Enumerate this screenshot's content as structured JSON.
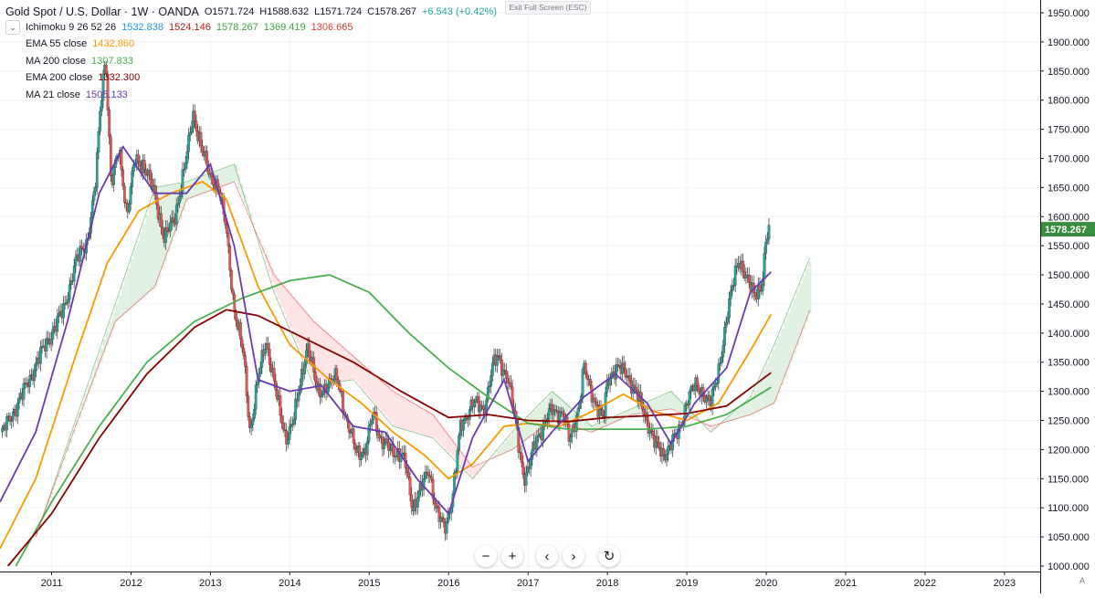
{
  "header": {
    "symbol_title": "Gold Spot / U.S. Dollar · 1W · OANDA",
    "open": "O1571.724",
    "high": "H1588.632",
    "low": "L1571.724",
    "close": "C1578.267",
    "change": "+6.543 (+0.42%)"
  },
  "exit_fullscreen_label": "Exit Full Screen (ESC)",
  "studies": [
    {
      "name": "Ichimoku 9 26 52 26",
      "values": [
        {
          "text": "1532.838",
          "color": "#2196f3"
        },
        {
          "text": "1524.146",
          "color": "#b71c1c"
        },
        {
          "text": "1578.267",
          "color": "#43a047"
        },
        {
          "text": "1369.419",
          "color": "#43a047"
        },
        {
          "text": "1306.665",
          "color": "#e53935"
        }
      ]
    },
    {
      "name": "EMA 55 close",
      "values": [
        {
          "text": "1432.860",
          "color": "#ff9800"
        }
      ]
    },
    {
      "name": "MA 200 close",
      "values": [
        {
          "text": "1307.833",
          "color": "#4caf50"
        }
      ]
    },
    {
      "name": "EMA 200 close",
      "values": [
        {
          "text": "1332.300",
          "color": "#8b0000"
        }
      ]
    },
    {
      "name": "MA 21 close",
      "values": [
        {
          "text": "1505.133",
          "color": "#673ab7"
        }
      ]
    }
  ],
  "colors": {
    "up_candle": "#26a69a",
    "down_candle": "#ef5350",
    "ema55": "#ff9800",
    "ma200": "#4caf50",
    "ema200": "#8b0000",
    "ma21": "#673ab7",
    "cloud_bull": "#c8e6c9",
    "cloud_bear": "#ffcdd2",
    "price_tag": "#388e3c"
  },
  "last_price_label": "1578.267",
  "bottom_toolbar": {
    "zoom_out": "−",
    "zoom_in": "+",
    "scroll_left": "‹",
    "scroll_right": "›",
    "reset": "↻"
  },
  "auto_scale_label": "A",
  "chart_data": {
    "type": "candlestick",
    "title": "Gold Spot / U.S. Dollar · 1W · OANDA",
    "y_axis_position": "right",
    "ylim": [
      1000,
      1950
    ],
    "y_ticks": [
      1000,
      1050,
      1100,
      1150,
      1200,
      1250,
      1300,
      1350,
      1400,
      1450,
      1500,
      1550,
      1600,
      1650,
      1700,
      1750,
      1800,
      1850,
      1900,
      1950
    ],
    "y_tick_labels": [
      "1000.000",
      "1050.000",
      "1100.000",
      "1150.000",
      "1200.000",
      "1250.000",
      "1300.000",
      "1350.000",
      "1400.000",
      "1450.000",
      "1500.000",
      "1550.000",
      "1600.000",
      "1650.000",
      "1700.000",
      "1750.000",
      "1800.000",
      "1850.000",
      "1900.000",
      "1950.000"
    ],
    "x_ticks": [
      2011,
      2012,
      2013,
      2014,
      2015,
      2016,
      2017,
      2018,
      2019,
      2020,
      2021,
      2022,
      2023
    ],
    "xlim": [
      2010.35,
      2023.45
    ],
    "last_price": 1578.267,
    "price_path": [
      [
        2010.38,
        1230
      ],
      [
        2010.5,
        1260
      ],
      [
        2010.65,
        1300
      ],
      [
        2010.85,
        1360
      ],
      [
        2011.0,
        1400
      ],
      [
        2011.15,
        1440
      ],
      [
        2011.3,
        1520
      ],
      [
        2011.45,
        1560
      ],
      [
        2011.55,
        1650
      ],
      [
        2011.62,
        1800
      ],
      [
        2011.68,
        1880
      ],
      [
        2011.75,
        1650
      ],
      [
        2011.85,
        1720
      ],
      [
        2011.95,
        1600
      ],
      [
        2012.05,
        1700
      ],
      [
        2012.15,
        1690
      ],
      [
        2012.3,
        1640
      ],
      [
        2012.42,
        1560
      ],
      [
        2012.55,
        1600
      ],
      [
        2012.7,
        1700
      ],
      [
        2012.78,
        1780
      ],
      [
        2012.9,
        1710
      ],
      [
        2013.0,
        1670
      ],
      [
        2013.1,
        1650
      ],
      [
        2013.2,
        1580
      ],
      [
        2013.3,
        1440
      ],
      [
        2013.42,
        1360
      ],
      [
        2013.5,
        1230
      ],
      [
        2013.6,
        1320
      ],
      [
        2013.7,
        1390
      ],
      [
        2013.85,
        1280
      ],
      [
        2013.95,
        1220
      ],
      [
        2014.05,
        1250
      ],
      [
        2014.15,
        1330
      ],
      [
        2014.22,
        1380
      ],
      [
        2014.35,
        1300
      ],
      [
        2014.5,
        1310
      ],
      [
        2014.6,
        1330
      ],
      [
        2014.72,
        1240
      ],
      [
        2014.85,
        1200
      ],
      [
        2014.95,
        1190
      ],
      [
        2015.05,
        1270
      ],
      [
        2015.15,
        1210
      ],
      [
        2015.3,
        1200
      ],
      [
        2015.45,
        1180
      ],
      [
        2015.55,
        1100
      ],
      [
        2015.65,
        1130
      ],
      [
        2015.75,
        1170
      ],
      [
        2015.85,
        1090
      ],
      [
        2015.95,
        1065
      ],
      [
        2016.05,
        1120
      ],
      [
        2016.15,
        1240
      ],
      [
        2016.3,
        1280
      ],
      [
        2016.45,
        1270
      ],
      [
        2016.55,
        1340
      ],
      [
        2016.62,
        1360
      ],
      [
        2016.75,
        1320
      ],
      [
        2016.85,
        1240
      ],
      [
        2016.95,
        1150
      ],
      [
        2017.0,
        1160
      ],
      [
        2017.1,
        1220
      ],
      [
        2017.2,
        1240
      ],
      [
        2017.3,
        1270
      ],
      [
        2017.45,
        1260
      ],
      [
        2017.52,
        1215
      ],
      [
        2017.65,
        1280
      ],
      [
        2017.7,
        1340
      ],
      [
        2017.85,
        1280
      ],
      [
        2017.95,
        1250
      ],
      [
        2018.0,
        1320
      ],
      [
        2018.1,
        1340
      ],
      [
        2018.25,
        1330
      ],
      [
        2018.35,
        1300
      ],
      [
        2018.5,
        1250
      ],
      [
        2018.6,
        1210
      ],
      [
        2018.7,
        1190
      ],
      [
        2018.8,
        1210
      ],
      [
        2018.9,
        1230
      ],
      [
        2019.0,
        1285
      ],
      [
        2019.1,
        1310
      ],
      [
        2019.2,
        1300
      ],
      [
        2019.3,
        1275
      ],
      [
        2019.4,
        1340
      ],
      [
        2019.5,
        1420
      ],
      [
        2019.6,
        1500
      ],
      [
        2019.65,
        1530
      ],
      [
        2019.75,
        1490
      ],
      [
        2019.85,
        1470
      ],
      [
        2019.95,
        1480
      ],
      [
        2020.0,
        1560
      ],
      [
        2020.04,
        1578
      ]
    ],
    "series": [
      {
        "name": "EMA 55 close",
        "color": "#ff9800",
        "points": [
          [
            2010.35,
            1030
          ],
          [
            2010.8,
            1150
          ],
          [
            2011.3,
            1360
          ],
          [
            2011.7,
            1520
          ],
          [
            2012.1,
            1610
          ],
          [
            2012.5,
            1640
          ],
          [
            2012.9,
            1660
          ],
          [
            2013.2,
            1630
          ],
          [
            2013.6,
            1480
          ],
          [
            2014.0,
            1380
          ],
          [
            2014.5,
            1320
          ],
          [
            2014.9,
            1280
          ],
          [
            2015.3,
            1230
          ],
          [
            2015.7,
            1190
          ],
          [
            2016.0,
            1150
          ],
          [
            2016.3,
            1175
          ],
          [
            2016.7,
            1240
          ],
          [
            2017.0,
            1245
          ],
          [
            2017.4,
            1240
          ],
          [
            2017.8,
            1265
          ],
          [
            2018.2,
            1295
          ],
          [
            2018.6,
            1265
          ],
          [
            2019.0,
            1250
          ],
          [
            2019.4,
            1280
          ],
          [
            2019.8,
            1370
          ],
          [
            2020.06,
            1432
          ]
        ]
      },
      {
        "name": "MA 200 close",
        "color": "#4caf50",
        "points": [
          [
            2010.55,
            1000
          ],
          [
            2011.0,
            1110
          ],
          [
            2011.6,
            1240
          ],
          [
            2012.2,
            1350
          ],
          [
            2012.8,
            1420
          ],
          [
            2013.4,
            1460
          ],
          [
            2014.0,
            1490
          ],
          [
            2014.5,
            1500
          ],
          [
            2015.0,
            1470
          ],
          [
            2015.5,
            1400
          ],
          [
            2016.0,
            1340
          ],
          [
            2016.5,
            1290
          ],
          [
            2017.0,
            1245
          ],
          [
            2017.5,
            1235
          ],
          [
            2018.0,
            1235
          ],
          [
            2018.5,
            1235
          ],
          [
            2019.0,
            1240
          ],
          [
            2019.5,
            1260
          ],
          [
            2020.06,
            1307
          ]
        ]
      },
      {
        "name": "EMA 200 close",
        "color": "#8b0000",
        "points": [
          [
            2010.45,
            1000
          ],
          [
            2011.0,
            1090
          ],
          [
            2011.6,
            1220
          ],
          [
            2012.2,
            1330
          ],
          [
            2012.8,
            1410
          ],
          [
            2013.2,
            1440
          ],
          [
            2013.6,
            1430
          ],
          [
            2014.2,
            1390
          ],
          [
            2014.8,
            1350
          ],
          [
            2015.4,
            1300
          ],
          [
            2016.0,
            1255
          ],
          [
            2016.5,
            1260
          ],
          [
            2017.0,
            1250
          ],
          [
            2017.5,
            1248
          ],
          [
            2018.0,
            1255
          ],
          [
            2018.5,
            1258
          ],
          [
            2019.0,
            1262
          ],
          [
            2019.5,
            1275
          ],
          [
            2020.06,
            1332
          ]
        ]
      },
      {
        "name": "MA 21 close",
        "color": "#673ab7",
        "points": [
          [
            2010.35,
            1110
          ],
          [
            2010.8,
            1230
          ],
          [
            2011.2,
            1420
          ],
          [
            2011.6,
            1640
          ],
          [
            2011.9,
            1720
          ],
          [
            2012.3,
            1640
          ],
          [
            2012.7,
            1640
          ],
          [
            2013.0,
            1690
          ],
          [
            2013.3,
            1550
          ],
          [
            2013.6,
            1320
          ],
          [
            2014.0,
            1300
          ],
          [
            2014.4,
            1310
          ],
          [
            2014.8,
            1240
          ],
          [
            2015.2,
            1230
          ],
          [
            2015.6,
            1150
          ],
          [
            2016.0,
            1090
          ],
          [
            2016.3,
            1220
          ],
          [
            2016.7,
            1320
          ],
          [
            2017.0,
            1180
          ],
          [
            2017.3,
            1230
          ],
          [
            2017.7,
            1290
          ],
          [
            2018.1,
            1330
          ],
          [
            2018.5,
            1280
          ],
          [
            2018.8,
            1210
          ],
          [
            2019.1,
            1280
          ],
          [
            2019.5,
            1340
          ],
          [
            2019.8,
            1470
          ],
          [
            2020.06,
            1505
          ]
        ]
      },
      {
        "name": "Ichimoku Senkou A",
        "color": "#43a047",
        "points": [
          [
            2010.8,
            1050
          ],
          [
            2011.3,
            1250
          ],
          [
            2011.8,
            1450
          ],
          [
            2012.3,
            1650
          ],
          [
            2012.7,
            1660
          ],
          [
            2013.3,
            1690
          ],
          [
            2013.8,
            1470
          ],
          [
            2014.3,
            1310
          ],
          [
            2014.8,
            1320
          ],
          [
            2015.3,
            1240
          ],
          [
            2015.8,
            1220
          ],
          [
            2016.3,
            1150
          ],
          [
            2016.8,
            1230
          ],
          [
            2017.3,
            1300
          ],
          [
            2017.8,
            1240
          ],
          [
            2018.3,
            1270
          ],
          [
            2018.8,
            1300
          ],
          [
            2019.3,
            1230
          ],
          [
            2019.8,
            1290
          ],
          [
            2020.1,
            1380
          ],
          [
            2020.55,
            1530
          ]
        ]
      },
      {
        "name": "Ichimoku Senkou B",
        "color": "#e53935",
        "points": [
          [
            2010.8,
            1050
          ],
          [
            2011.3,
            1240
          ],
          [
            2011.8,
            1420
          ],
          [
            2012.3,
            1480
          ],
          [
            2012.7,
            1630
          ],
          [
            2013.3,
            1660
          ],
          [
            2013.8,
            1500
          ],
          [
            2014.3,
            1420
          ],
          [
            2014.8,
            1360
          ],
          [
            2015.3,
            1300
          ],
          [
            2015.8,
            1260
          ],
          [
            2016.3,
            1170
          ],
          [
            2016.8,
            1200
          ],
          [
            2017.3,
            1250
          ],
          [
            2017.8,
            1230
          ],
          [
            2018.3,
            1260
          ],
          [
            2018.8,
            1270
          ],
          [
            2019.3,
            1240
          ],
          [
            2019.8,
            1260
          ],
          [
            2020.1,
            1280
          ],
          [
            2020.55,
            1440
          ]
        ]
      }
    ]
  }
}
